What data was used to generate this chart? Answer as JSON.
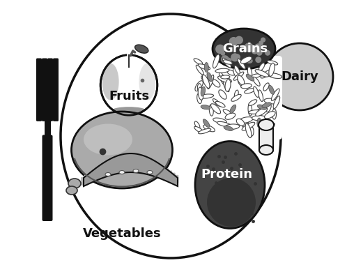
{
  "bg_color": "#ffffff",
  "border_color": "#999999",
  "plate_color": "#ffffff",
  "plate_border": "#111111",
  "dairy_fill": "#cccccc",
  "dairy_border": "#111111",
  "fork_color": "#111111",
  "labels": {
    "fruits": "Fruits",
    "grains": "Grains",
    "vegetables": "Vegetables",
    "protein": "Protein",
    "dairy": "Dairy"
  },
  "label_fontsize": 12,
  "label_color": "#111111",
  "fig_width": 4.98,
  "fig_height": 4.0,
  "dpi": 100
}
